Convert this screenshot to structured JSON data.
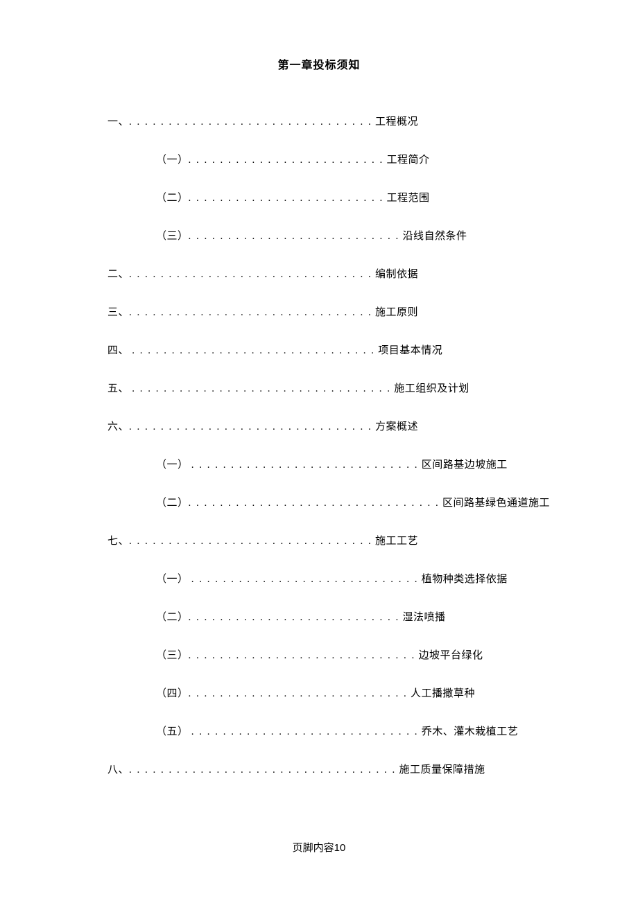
{
  "chapter_title": "第一章投标须知",
  "footer_text": "页脚内容10",
  "toc": [
    {
      "level": 1,
      "prefix": "一、",
      "dots": ". . . . . . . . . . . . . . . . . . . . . . . . . . . . . . .",
      "label": "工程概况"
    },
    {
      "level": 2,
      "prefix": "（一）",
      "dots": ". . . . . . . . . . . . . . . . . . . . . . . . .",
      "label": "工程简介"
    },
    {
      "level": 2,
      "prefix": "（二）",
      "dots": ". . . . . . . . . . . . . . . . . . . . . . . . .",
      "label": "工程范围"
    },
    {
      "level": 2,
      "prefix": "（三）",
      "dots": ". . . . . . . . . . . . . . . . . . . . . . . . . . .",
      "label": "沿线自然条件"
    },
    {
      "level": 1,
      "prefix": "二、",
      "dots": ". . . . . . . . . . . . . . . . . . . . . . . . . . . . . . .",
      "label": "编制依据"
    },
    {
      "level": 1,
      "prefix": "三、",
      "dots": ". . . . . . . . . . . . . . . . . . . . . . . . . . . . . . .",
      "label": "施工原则"
    },
    {
      "level": 1,
      "prefix": "四、 ",
      "dots": ". . . . . . . . . . . . . . . . . . . . . . . . . . . . . . .",
      "label": "项目基本情况"
    },
    {
      "level": 1,
      "prefix": "五、 ",
      "dots": ". . . . . . . . . . . . . . . . . . . . . . . . . . . . . . . . .",
      "label": "施工组织及计划"
    },
    {
      "level": 1,
      "prefix": "六、",
      "dots": ". . . . . . . . . . . . . . . . . . . . . . . . . . . . . . .",
      "label": "方案概述"
    },
    {
      "level": 2,
      "prefix": "（一） ",
      "dots": ". . . . . . . . . . . . . . . . . . . . . . . . . . . . .",
      "label": "区间路基边坡施工"
    },
    {
      "level": 2,
      "prefix": "（二）",
      "dots": ". . . . . . . . . . . . . . . . . . . . . . . . . . . . . . . .",
      "label": "区间路基绿色通道施工"
    },
    {
      "level": 1,
      "prefix": "七、",
      "dots": ". . . . . . . . . . . . . . . . . . . . . . . . . . . . . . .",
      "label": "施工工艺"
    },
    {
      "level": 2,
      "prefix": "（一） ",
      "dots": ". . . . . . . . . . . . . . . . . . . . . . . . . . . . .",
      "label": "植物种类选择依据"
    },
    {
      "level": 2,
      "prefix": "（二）",
      "dots": ". . . . . . . . . . . . . . . . . . . . . . . . . . .",
      "label": "湿法喷播"
    },
    {
      "level": 2,
      "prefix": "（三）",
      "dots": ". . . . . . . . . . . . . . . . . . . . . . . . . . . . .",
      "label": "边坡平台绿化"
    },
    {
      "level": 2,
      "prefix": "（四）",
      "dots": ". . . . . . . . . . . . . . . . . . . . . . . . . . . .",
      "label": "人工播撒草种"
    },
    {
      "level": 2,
      "prefix": "（五） ",
      "dots": ". . . . . . . . . . . . . . . . . . . . . . . . . . . . .",
      "label": "乔木、灌木栽植工艺"
    },
    {
      "level": 1,
      "prefix": "八、",
      "dots": ". . . . . . . . . . . . . . . . . . . . . . . . . . . . . . . . . .",
      "label": "施工质量保障措施"
    }
  ],
  "text_color": "#000000",
  "background_color": "#ffffff",
  "title_fontsize": 16,
  "body_fontsize": 15
}
